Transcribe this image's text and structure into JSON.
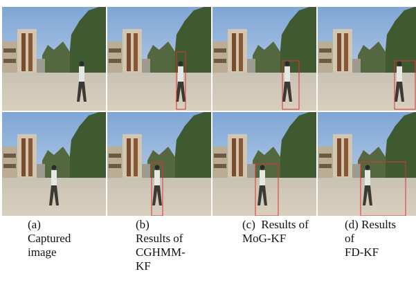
{
  "figure": {
    "captions": [
      {
        "lines": [
          "(a)",
          "Captured",
          "image"
        ]
      },
      {
        "lines": [
          "(b)",
          "Results of",
          "CGHMM-",
          "KF"
        ]
      },
      {
        "lines": [
          "(c)  Results of",
          "MoG-KF"
        ]
      },
      {
        "lines": [
          "(d) Results",
          "of",
          "FD-KF"
        ]
      }
    ]
  }
}
